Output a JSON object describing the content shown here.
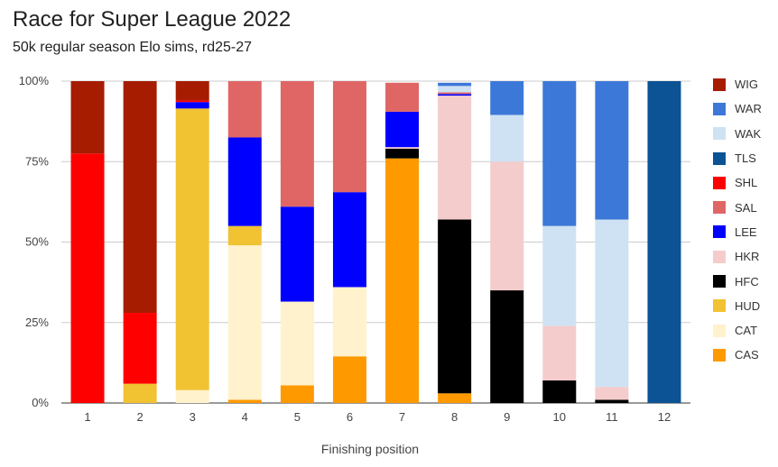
{
  "chart_data": {
    "type": "bar",
    "stacked": true,
    "title": "Race for Super League 2022",
    "subtitle": "50k regular season Elo sims, rd25-27",
    "xlabel": "Finishing position",
    "ylabel": "",
    "ylim": [
      0,
      100
    ],
    "y_ticks": [
      "0%",
      "25%",
      "50%",
      "75%",
      "100%"
    ],
    "categories": [
      "1",
      "2",
      "3",
      "4",
      "5",
      "6",
      "7",
      "8",
      "9",
      "10",
      "11",
      "12"
    ],
    "legend_position": "right",
    "series": [
      {
        "name": "CAS",
        "color": "#ff9900",
        "values": [
          0,
          0,
          0,
          1,
          5.5,
          14.5,
          76,
          3,
          0,
          0,
          0,
          0
        ]
      },
      {
        "name": "CAT",
        "color": "#fff2cc",
        "values": [
          0,
          0,
          4,
          48,
          26,
          21.5,
          0,
          0,
          0,
          0,
          0,
          0
        ]
      },
      {
        "name": "HUD",
        "color": "#f1c232",
        "values": [
          0,
          6,
          87.5,
          6,
          0,
          0,
          0,
          0,
          0,
          0,
          0,
          0
        ]
      },
      {
        "name": "HFC",
        "color": "#000000",
        "values": [
          0,
          0,
          0,
          0,
          0,
          0,
          3,
          54,
          35,
          7,
          1,
          0
        ]
      },
      {
        "name": "HKR",
        "color": "#f4cccc",
        "values": [
          0,
          0,
          0,
          0,
          0,
          0,
          0.5,
          38.5,
          40,
          17,
          4,
          0
        ]
      },
      {
        "name": "LEE",
        "color": "#0000ff",
        "values": [
          0,
          0,
          2,
          27.5,
          29.5,
          29.5,
          11,
          0.5,
          0,
          0,
          0,
          0
        ]
      },
      {
        "name": "SAL",
        "color": "#e06666",
        "values": [
          0,
          0,
          0,
          17.5,
          39,
          34.5,
          9,
          0.5,
          0,
          0,
          0,
          0
        ]
      },
      {
        "name": "SHL",
        "color": "#ff0000",
        "values": [
          77.5,
          22,
          0.5,
          0,
          0,
          0,
          0,
          0,
          0,
          0,
          0,
          0
        ]
      },
      {
        "name": "TLS",
        "color": "#0b5394",
        "values": [
          0,
          0,
          0,
          0,
          0,
          0,
          0,
          0,
          0,
          0,
          0,
          100
        ]
      },
      {
        "name": "WAK",
        "color": "#cfe2f3",
        "values": [
          0,
          0,
          0,
          0,
          0,
          0,
          0,
          2,
          14.5,
          31,
          52,
          0
        ]
      },
      {
        "name": "WAR",
        "color": "#3c78d8",
        "values": [
          0,
          0,
          0,
          0,
          0,
          0,
          0,
          1,
          10.5,
          45,
          43,
          0
        ]
      },
      {
        "name": "WIG",
        "color": "#a61c00",
        "values": [
          22.5,
          72,
          6,
          0,
          0,
          0,
          0,
          0,
          0,
          0,
          0,
          0
        ]
      }
    ],
    "legend_order": [
      "WIG",
      "WAR",
      "WAK",
      "TLS",
      "SHL",
      "SAL",
      "LEE",
      "HKR",
      "HFC",
      "HUD",
      "CAT",
      "CAS"
    ]
  }
}
